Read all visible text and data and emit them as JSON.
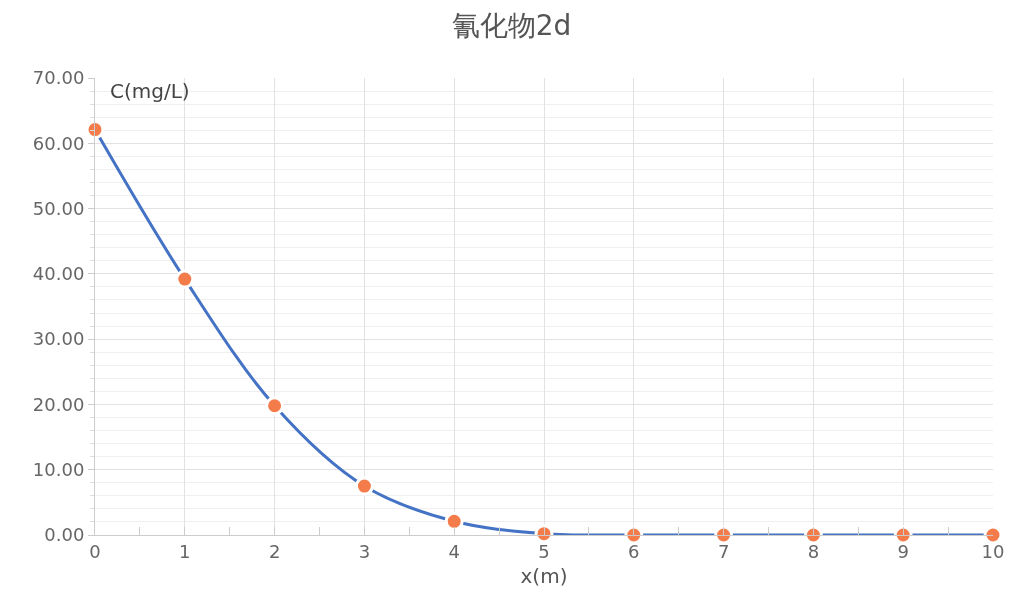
{
  "chart_data": {
    "type": "line",
    "title": "氰化物2d",
    "xlabel": "x(m)",
    "ylabel": "C(mg/L)",
    "x": [
      0,
      1,
      2,
      3,
      4,
      5,
      6,
      7,
      8,
      9,
      10
    ],
    "series": [
      {
        "color": "#4472c4",
        "values": [
          62.1,
          39.2,
          19.8,
          7.5,
          2.1,
          0.2,
          0,
          0,
          0,
          0,
          0
        ],
        "colors": [
          "#f47c4a",
          "#f47c4a",
          "#f47c4a",
          "#f47c4a",
          "#f47c4a",
          "#f47c4a",
          "#f47c4a",
          "#f47c4a",
          "#f47c4a",
          "#f47c4a",
          "#f47c4a"
        ]
      }
    ],
    "marker": "circle",
    "xlim": [
      0,
      10
    ],
    "xticks": [
      0,
      1,
      2,
      3,
      4,
      5,
      6,
      7,
      8,
      9,
      10
    ],
    "ylim": [
      0,
      70
    ],
    "yticks": [
      {
        "value": 0,
        "label": "0.00"
      },
      {
        "value": 10,
        "label": "10.00"
      },
      {
        "value": 20,
        "label": "20.00"
      },
      {
        "value": 30,
        "label": "30.00"
      },
      {
        "value": 40,
        "label": "40.00"
      },
      {
        "value": 50,
        "label": "50.00"
      },
      {
        "value": 60,
        "label": "60.00"
      },
      {
        "value": 70,
        "label": "70.00"
      }
    ],
    "grid": true
  }
}
